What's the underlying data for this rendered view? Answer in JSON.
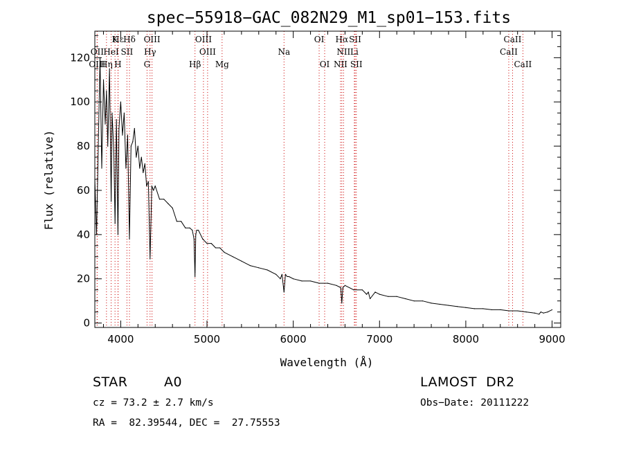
{
  "chart_data": {
    "type": "line",
    "title": "spec−55918−GAC_082N29_M1_sp01−153.fits",
    "xlabel": "Wavelength (Å)",
    "ylabel": "Flux (relative)",
    "xlim": [
      3700,
      9100
    ],
    "ylim": [
      -2,
      132
    ],
    "x_ticks": [
      4000,
      5000,
      6000,
      7000,
      8000,
      9000
    ],
    "y_ticks": [
      0,
      20,
      40,
      60,
      80,
      100,
      120
    ],
    "grid": false,
    "line_color": "#000000",
    "marker_color": "#cc0000",
    "series": [
      {
        "x": [
          3700,
          3720,
          3740,
          3760,
          3780,
          3800,
          3820,
          3835,
          3850,
          3870,
          3889,
          3900,
          3920,
          3934,
          3950,
          3968,
          3980,
          4000,
          4020,
          4040,
          4060,
          4080,
          4101,
          4120,
          4140,
          4160,
          4180,
          4200,
          4220,
          4240,
          4260,
          4280,
          4300,
          4320,
          4340,
          4360,
          4380,
          4400,
          4450,
          4500,
          4550,
          4600,
          4650,
          4700,
          4750,
          4800,
          4830,
          4850,
          4861,
          4870,
          4880,
          4900,
          4950,
          5000,
          5050,
          5100,
          5150,
          5200,
          5300,
          5400,
          5500,
          5600,
          5700,
          5800,
          5850,
          5870,
          5893,
          5910,
          5930,
          5950,
          6000,
          6100,
          6200,
          6300,
          6400,
          6500,
          6550,
          6563,
          6575,
          6600,
          6700,
          6800,
          6850,
          6870,
          6890,
          6950,
          7000,
          7100,
          7200,
          7300,
          7400,
          7500,
          7600,
          7700,
          7800,
          7900,
          8000,
          8100,
          8200,
          8300,
          8400,
          8500,
          8600,
          8700,
          8800,
          8850,
          8870,
          8900,
          8950,
          9000
        ],
        "y": [
          65,
          40,
          80,
          120,
          70,
          110,
          90,
          105,
          80,
          115,
          55,
          95,
          78,
          45,
          92,
          40,
          88,
          100,
          85,
          95,
          70,
          85,
          38,
          80,
          82,
          88,
          75,
          80,
          70,
          75,
          68,
          72,
          62,
          64,
          29,
          62,
          60,
          62,
          56,
          56,
          54,
          52,
          46,
          46,
          43,
          43,
          42,
          38,
          21,
          40,
          42,
          42,
          38,
          36,
          36,
          34,
          34,
          32,
          30,
          28,
          26,
          25,
          24,
          22,
          20,
          22,
          14,
          22,
          21,
          21,
          20,
          19,
          19,
          18,
          18,
          17,
          16,
          9,
          16,
          17,
          15,
          15,
          13,
          14,
          11,
          14,
          13,
          12,
          12,
          11,
          10,
          10,
          9,
          8.5,
          8,
          7.5,
          7,
          6.5,
          6.5,
          6,
          6,
          5.5,
          5.5,
          5,
          4.5,
          4,
          5,
          4.5,
          5,
          6
        ]
      }
    ],
    "line_markers": [
      {
        "label": "Hε",
        "wave": 3970,
        "row": 1
      },
      {
        "label": "K",
        "wave": 3934,
        "row": 1
      },
      {
        "label": "Hδ",
        "wave": 4101,
        "row": 1
      },
      {
        "label": "OIII",
        "wave": 4363,
        "row": 1
      },
      {
        "label": "OIII",
        "wave": 4959,
        "row": 1
      },
      {
        "label": "OI",
        "wave": 6300,
        "row": 1
      },
      {
        "label": "Hα",
        "wave": 6563,
        "row": 1
      },
      {
        "label": "SII",
        "wave": 6717,
        "row": 1
      },
      {
        "label": "CaII",
        "wave": 8542,
        "row": 1
      },
      {
        "label": "OII",
        "wave": 3727,
        "row": 2
      },
      {
        "label": "HeI",
        "wave": 3889,
        "row": 2
      },
      {
        "label": "SII",
        "wave": 4072,
        "row": 2
      },
      {
        "label": "Hγ",
        "wave": 4340,
        "row": 2
      },
      {
        "label": "OIII",
        "wave": 5007,
        "row": 2
      },
      {
        "label": "Na",
        "wave": 5893,
        "row": 2
      },
      {
        "label": "NII",
        "wave": 6583,
        "row": 2
      },
      {
        "label": "Li",
        "wave": 6708,
        "row": 2
      },
      {
        "label": "CaII",
        "wave": 8498,
        "row": 2
      },
      {
        "label": "OIII",
        "wave": 3727,
        "row": 3
      },
      {
        "label": "Hη",
        "wave": 3835,
        "row": 3
      },
      {
        "label": "H",
        "wave": 3968,
        "row": 3
      },
      {
        "label": "G",
        "wave": 4305,
        "row": 3
      },
      {
        "label": "Hβ",
        "wave": 4861,
        "row": 3
      },
      {
        "label": "Mg",
        "wave": 5175,
        "row": 3
      },
      {
        "label": "OI",
        "wave": 6364,
        "row": 3
      },
      {
        "label": "NII",
        "wave": 6548,
        "row": 3
      },
      {
        "label": "SII",
        "wave": 6731,
        "row": 3
      },
      {
        "label": "CaII",
        "wave": 8662,
        "row": 3
      }
    ]
  },
  "footer": {
    "object_class": "STAR",
    "subclass": "A0",
    "survey": "LAMOST  DR2",
    "redshift": "cz = 73.2 ± 2.7 km/s",
    "obs_date": "Obs−Date: 20111222",
    "coords": "RA =  82.39544, DEC =  27.75553"
  }
}
